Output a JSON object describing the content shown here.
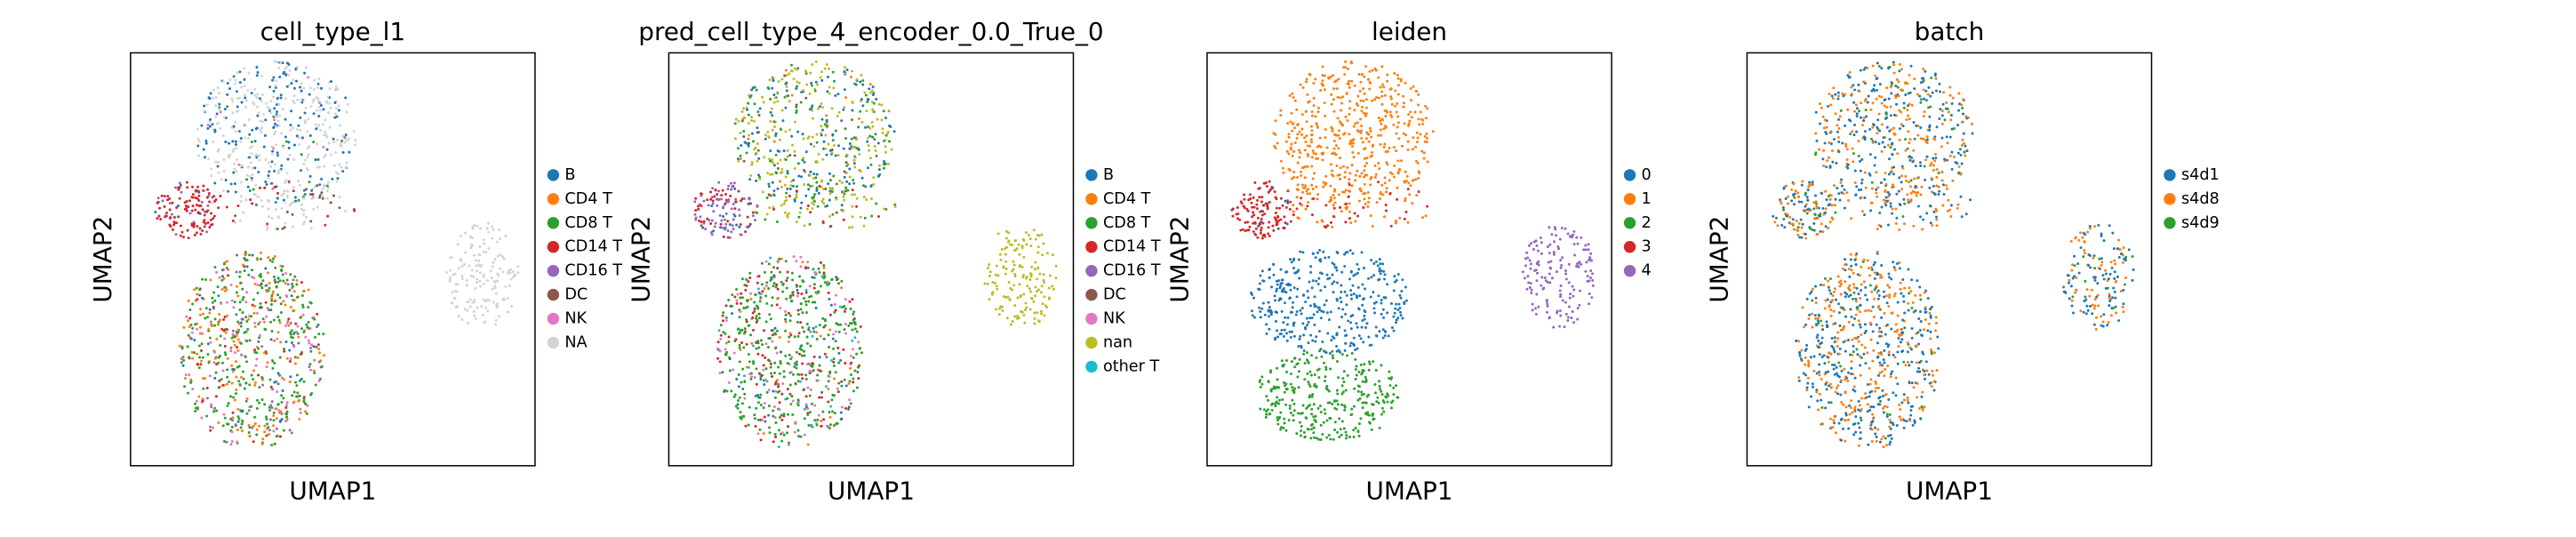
{
  "chart_data": [
    {
      "type": "scatter",
      "title": "cell_type_l1",
      "xlabel": "UMAP1",
      "ylabel": "UMAP2",
      "series": [
        {
          "name": "B",
          "color": "#1f77b4"
        },
        {
          "name": "CD4 T",
          "color": "#ff7f0e"
        },
        {
          "name": "CD8 T",
          "color": "#2ca02c"
        },
        {
          "name": "CD14 T",
          "color": "#d62728"
        },
        {
          "name": "CD16 T",
          "color": "#9467bd"
        },
        {
          "name": "DC",
          "color": "#8c564b"
        },
        {
          "name": "NK",
          "color": "#e377c2"
        },
        {
          "name": "NA",
          "color": "#d3d3d3"
        }
      ]
    },
    {
      "type": "scatter",
      "title": "pred_cell_type_4_encoder_0.0_True_0",
      "xlabel": "UMAP1",
      "ylabel": "UMAP2",
      "series": [
        {
          "name": "B",
          "color": "#1f77b4"
        },
        {
          "name": "CD4 T",
          "color": "#ff7f0e"
        },
        {
          "name": "CD8 T",
          "color": "#2ca02c"
        },
        {
          "name": "CD14 T",
          "color": "#d62728"
        },
        {
          "name": "CD16 T",
          "color": "#9467bd"
        },
        {
          "name": "DC",
          "color": "#8c564b"
        },
        {
          "name": "NK",
          "color": "#e377c2"
        },
        {
          "name": "nan",
          "color": "#bcbd22"
        },
        {
          "name": "other T",
          "color": "#17becf"
        }
      ]
    },
    {
      "type": "scatter",
      "title": "leiden",
      "xlabel": "UMAP1",
      "ylabel": "UMAP2",
      "series": [
        {
          "name": "0",
          "color": "#1f77b4"
        },
        {
          "name": "1",
          "color": "#ff7f0e"
        },
        {
          "name": "2",
          "color": "#2ca02c"
        },
        {
          "name": "3",
          "color": "#d62728"
        },
        {
          "name": "4",
          "color": "#9467bd"
        }
      ]
    },
    {
      "type": "scatter",
      "title": "batch",
      "xlabel": "UMAP1",
      "ylabel": "UMAP2",
      "series": [
        {
          "name": "s4d1",
          "color": "#1f77b4"
        },
        {
          "name": "s4d8",
          "color": "#ff7f0e"
        },
        {
          "name": "s4d9",
          "color": "#2ca02c"
        }
      ]
    }
  ]
}
